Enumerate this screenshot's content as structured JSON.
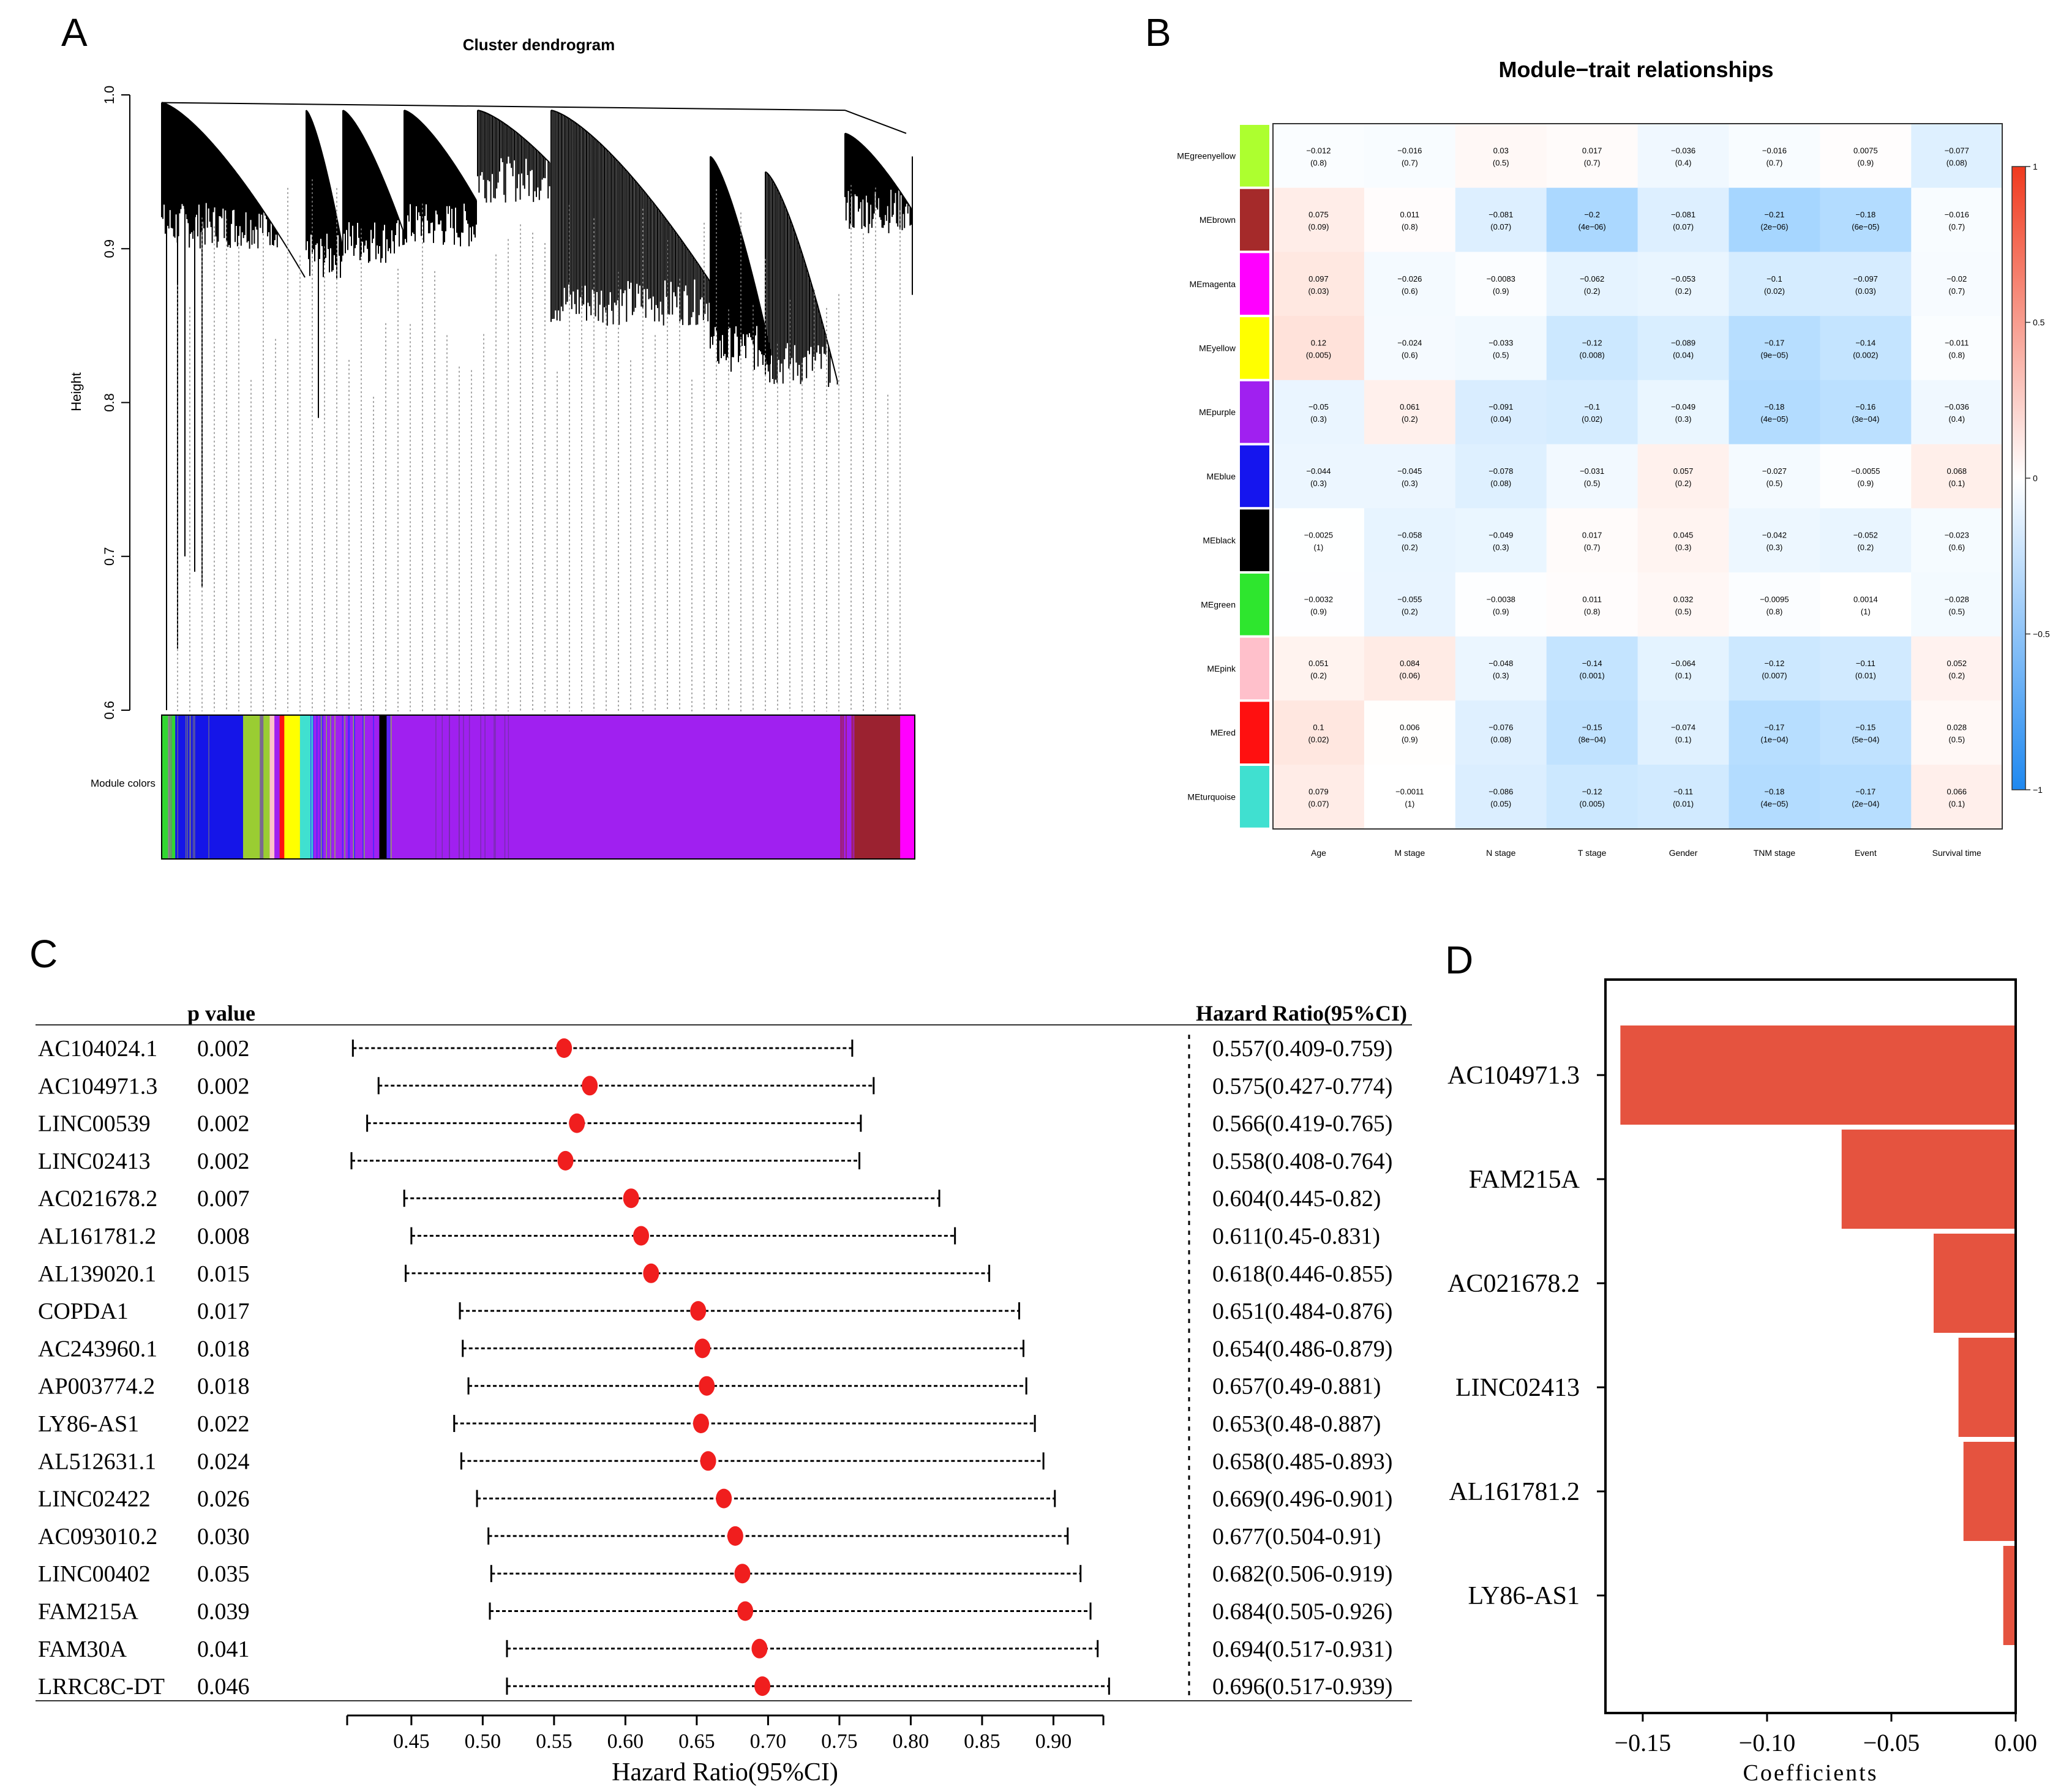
{
  "panels": [
    {
      "letter": "A",
      "chart_data": {
        "type": "dendrogram",
        "title": "Cluster dendrogram",
        "ylabel": "Height",
        "ylim": [
          0.6,
          1.0
        ],
        "y_ticks": [
          "0.6",
          "0.7",
          "0.8",
          "0.9",
          "1.0"
        ],
        "color_bar_label": "Module colors",
        "module_color_bands": [
          {
            "color": "#32d632",
            "weight": 0.6
          },
          {
            "color": "#8a8a8a",
            "weight": 0.25
          },
          {
            "color": "#32d632",
            "weight": 0.45
          },
          {
            "color": "#1515e8",
            "weight": 6.5
          },
          {
            "color": "#9acd32",
            "weight": 1.6
          },
          {
            "color": "#7a6a8e",
            "weight": 0.35
          },
          {
            "color": "#9acd32",
            "weight": 0.6
          },
          {
            "color": "#ffc0cb",
            "weight": 0.45
          },
          {
            "color": "#a020f0",
            "weight": 0.5
          },
          {
            "color": "#ff1010",
            "weight": 0.45
          },
          {
            "color": "#ffff00",
            "weight": 1.5
          },
          {
            "color": "#40e0d0",
            "weight": 1.3
          },
          {
            "color": "#a020f0",
            "weight": 6.3
          },
          {
            "color": "#000000",
            "weight": 0.7
          },
          {
            "color": "#a020f0",
            "weight": 44.8
          },
          {
            "color": "#9b2230",
            "weight": 4.4
          },
          {
            "color": "#ff00ff",
            "weight": 1.4
          }
        ]
      }
    },
    {
      "letter": "B",
      "chart_data": {
        "type": "heatmap",
        "title": "Module−trait relationships",
        "rows": [
          "MEgreenyellow",
          "MEbrown",
          "MEmagenta",
          "MEyellow",
          "MEpurple",
          "MEblue",
          "MEblack",
          "MEgreen",
          "MEpink",
          "MEred",
          "MEturquoise"
        ],
        "row_colors": [
          "#adff2f",
          "#a52a2a",
          "#ff00ff",
          "#ffff00",
          "#a020f0",
          "#1515ee",
          "#000000",
          "#2ee62e",
          "#ffc0cb",
          "#ff1010",
          "#40e0d0"
        ],
        "columns": [
          "Age",
          "M stage",
          "N stage",
          "T stage",
          "Gender",
          "TNM stage",
          "Event",
          "Survival time"
        ],
        "correlations": [
          [
            -0.012,
            -0.016,
            0.03,
            0.017,
            -0.036,
            -0.016,
            0.0075,
            -0.077
          ],
          [
            0.075,
            0.011,
            -0.081,
            -0.2,
            -0.081,
            -0.21,
            -0.18,
            -0.016
          ],
          [
            0.097,
            -0.026,
            -0.0083,
            -0.062,
            -0.053,
            -0.1,
            -0.097,
            -0.02
          ],
          [
            0.12,
            -0.024,
            -0.033,
            -0.12,
            -0.089,
            -0.17,
            -0.14,
            -0.011
          ],
          [
            -0.05,
            0.061,
            -0.091,
            -0.1,
            -0.049,
            -0.18,
            -0.16,
            -0.036
          ],
          [
            -0.044,
            -0.045,
            -0.078,
            -0.031,
            0.057,
            -0.027,
            -0.0055,
            0.068
          ],
          [
            -0.0025,
            -0.058,
            -0.049,
            0.017,
            0.045,
            -0.042,
            -0.052,
            -0.023
          ],
          [
            -0.0032,
            -0.055,
            -0.0038,
            0.011,
            0.032,
            -0.0095,
            0.0014,
            -0.028
          ],
          [
            0.051,
            0.084,
            -0.048,
            -0.14,
            -0.064,
            -0.12,
            -0.11,
            0.052
          ],
          [
            0.1,
            0.006,
            -0.076,
            -0.15,
            -0.074,
            -0.17,
            -0.15,
            0.028
          ],
          [
            0.079,
            -0.0011,
            -0.086,
            -0.12,
            -0.11,
            -0.18,
            -0.17,
            0.066
          ]
        ],
        "cell_labels": [
          [
            [
              "−0.012",
              "(0.8)"
            ],
            [
              "−0.016",
              "(0.7)"
            ],
            [
              "0.03",
              "(0.5)"
            ],
            [
              "0.017",
              "(0.7)"
            ],
            [
              "−0.036",
              "(0.4)"
            ],
            [
              "−0.016",
              "(0.7)"
            ],
            [
              "0.0075",
              "(0.9)"
            ],
            [
              "−0.077",
              "(0.08)"
            ]
          ],
          [
            [
              "0.075",
              "(0.09)"
            ],
            [
              "0.011",
              "(0.8)"
            ],
            [
              "−0.081",
              "(0.07)"
            ],
            [
              "−0.2",
              "(4e−06)"
            ],
            [
              "−0.081",
              "(0.07)"
            ],
            [
              "−0.21",
              "(2e−06)"
            ],
            [
              "−0.18",
              "(6e−05)"
            ],
            [
              "−0.016",
              "(0.7)"
            ]
          ],
          [
            [
              "0.097",
              "(0.03)"
            ],
            [
              "−0.026",
              "(0.6)"
            ],
            [
              "−0.0083",
              "(0.9)"
            ],
            [
              "−0.062",
              "(0.2)"
            ],
            [
              "−0.053",
              "(0.2)"
            ],
            [
              "−0.1",
              "(0.02)"
            ],
            [
              "−0.097",
              "(0.03)"
            ],
            [
              "−0.02",
              "(0.7)"
            ]
          ],
          [
            [
              "0.12",
              "(0.005)"
            ],
            [
              "−0.024",
              "(0.6)"
            ],
            [
              "−0.033",
              "(0.5)"
            ],
            [
              "−0.12",
              "(0.008)"
            ],
            [
              "−0.089",
              "(0.04)"
            ],
            [
              "−0.17",
              "(9e−05)"
            ],
            [
              "−0.14",
              "(0.002)"
            ],
            [
              "−0.011",
              "(0.8)"
            ]
          ],
          [
            [
              "−0.05",
              "(0.3)"
            ],
            [
              "0.061",
              "(0.2)"
            ],
            [
              "−0.091",
              "(0.04)"
            ],
            [
              "−0.1",
              "(0.02)"
            ],
            [
              "−0.049",
              "(0.3)"
            ],
            [
              "−0.18",
              "(4e−05)"
            ],
            [
              "−0.16",
              "(3e−04)"
            ],
            [
              "−0.036",
              "(0.4)"
            ]
          ],
          [
            [
              "−0.044",
              "(0.3)"
            ],
            [
              "−0.045",
              "(0.3)"
            ],
            [
              "−0.078",
              "(0.08)"
            ],
            [
              "−0.031",
              "(0.5)"
            ],
            [
              "0.057",
              "(0.2)"
            ],
            [
              "−0.027",
              "(0.5)"
            ],
            [
              "−0.0055",
              "(0.9)"
            ],
            [
              "0.068",
              "(0.1)"
            ]
          ],
          [
            [
              "−0.0025",
              "(1)"
            ],
            [
              "−0.058",
              "(0.2)"
            ],
            [
              "−0.049",
              "(0.3)"
            ],
            [
              "0.017",
              "(0.7)"
            ],
            [
              "0.045",
              "(0.3)"
            ],
            [
              "−0.042",
              "(0.3)"
            ],
            [
              "−0.052",
              "(0.2)"
            ],
            [
              "−0.023",
              "(0.6)"
            ]
          ],
          [
            [
              "−0.0032",
              "(0.9)"
            ],
            [
              "−0.055",
              "(0.2)"
            ],
            [
              "−0.0038",
              "(0.9)"
            ],
            [
              "0.011",
              "(0.8)"
            ],
            [
              "0.032",
              "(0.5)"
            ],
            [
              "−0.0095",
              "(0.8)"
            ],
            [
              "0.0014",
              "(1)"
            ],
            [
              "−0.028",
              "(0.5)"
            ]
          ],
          [
            [
              "0.051",
              "(0.2)"
            ],
            [
              "0.084",
              "(0.06)"
            ],
            [
              "−0.048",
              "(0.3)"
            ],
            [
              "−0.14",
              "(0.001)"
            ],
            [
              "−0.064",
              "(0.1)"
            ],
            [
              "−0.12",
              "(0.007)"
            ],
            [
              "−0.11",
              "(0.01)"
            ],
            [
              "0.052",
              "(0.2)"
            ]
          ],
          [
            [
              "0.1",
              "(0.02)"
            ],
            [
              "0.006",
              "(0.9)"
            ],
            [
              "−0.076",
              "(0.08)"
            ],
            [
              "−0.15",
              "(8e−04)"
            ],
            [
              "−0.074",
              "(0.1)"
            ],
            [
              "−0.17",
              "(1e−04)"
            ],
            [
              "−0.15",
              "(5e−04)"
            ],
            [
              "0.028",
              "(0.5)"
            ]
          ],
          [
            [
              "0.079",
              "(0.07)"
            ],
            [
              "−0.0011",
              "(1)"
            ],
            [
              "−0.086",
              "(0.05)"
            ],
            [
              "−0.12",
              "(0.005)"
            ],
            [
              "−0.11",
              "(0.01)"
            ],
            [
              "−0.18",
              "(4e−05)"
            ],
            [
              "−0.17",
              "(2e−04)"
            ],
            [
              "0.066",
              "(0.1)"
            ]
          ]
        ],
        "colorbar_range": [
          -1,
          1
        ],
        "colorbar_ticks": [
          "1",
          "0.5",
          "0",
          "−0.5",
          "−1"
        ]
      }
    },
    {
      "letter": "C",
      "chart_data": {
        "type": "forest",
        "pvalue_header": "p value",
        "hr_header": "Hazard Ratio(95%CI)",
        "xlabel": "Hazard Ratio(95%CI)",
        "x_ticks": [
          "0.45",
          "0.50",
          "0.55",
          "0.60",
          "0.65",
          "0.70",
          "0.75",
          "0.80",
          "0.85",
          "0.90"
        ],
        "xlim": [
          0.405,
          0.935
        ],
        "rows": [
          {
            "gene": "AC104024.1",
            "p": "0.002",
            "hr": 0.557,
            "lo": 0.409,
            "hi": 0.759,
            "label": "0.557(0.409-0.759)"
          },
          {
            "gene": "AC104971.3",
            "p": "0.002",
            "hr": 0.575,
            "lo": 0.427,
            "hi": 0.774,
            "label": "0.575(0.427-0.774)"
          },
          {
            "gene": "LINC00539",
            "p": "0.002",
            "hr": 0.566,
            "lo": 0.419,
            "hi": 0.765,
            "label": "0.566(0.419-0.765)"
          },
          {
            "gene": "LINC02413",
            "p": "0.002",
            "hr": 0.558,
            "lo": 0.408,
            "hi": 0.764,
            "label": "0.558(0.408-0.764)"
          },
          {
            "gene": "AC021678.2",
            "p": "0.007",
            "hr": 0.604,
            "lo": 0.445,
            "hi": 0.82,
            "label": "0.604(0.445-0.82)"
          },
          {
            "gene": "AL161781.2",
            "p": "0.008",
            "hr": 0.611,
            "lo": 0.45,
            "hi": 0.831,
            "label": "0.611(0.45-0.831)"
          },
          {
            "gene": "AL139020.1",
            "p": "0.015",
            "hr": 0.618,
            "lo": 0.446,
            "hi": 0.855,
            "label": "0.618(0.446-0.855)"
          },
          {
            "gene": "COPDA1",
            "p": "0.017",
            "hr": 0.651,
            "lo": 0.484,
            "hi": 0.876,
            "label": "0.651(0.484-0.876)"
          },
          {
            "gene": "AC243960.1",
            "p": "0.018",
            "hr": 0.654,
            "lo": 0.486,
            "hi": 0.879,
            "label": "0.654(0.486-0.879)"
          },
          {
            "gene": "AP003774.2",
            "p": "0.018",
            "hr": 0.657,
            "lo": 0.49,
            "hi": 0.881,
            "label": "0.657(0.49-0.881)"
          },
          {
            "gene": "LY86-AS1",
            "p": "0.022",
            "hr": 0.653,
            "lo": 0.48,
            "hi": 0.887,
            "label": "0.653(0.48-0.887)"
          },
          {
            "gene": "AL512631.1",
            "p": "0.024",
            "hr": 0.658,
            "lo": 0.485,
            "hi": 0.893,
            "label": "0.658(0.485-0.893)"
          },
          {
            "gene": "LINC02422",
            "p": "0.026",
            "hr": 0.669,
            "lo": 0.496,
            "hi": 0.901,
            "label": "0.669(0.496-0.901)"
          },
          {
            "gene": "AC093010.2",
            "p": "0.030",
            "hr": 0.677,
            "lo": 0.504,
            "hi": 0.91,
            "label": "0.677(0.504-0.91)"
          },
          {
            "gene": "LINC00402",
            "p": "0.035",
            "hr": 0.682,
            "lo": 0.506,
            "hi": 0.919,
            "label": "0.682(0.506-0.919)"
          },
          {
            "gene": "FAM215A",
            "p": "0.039",
            "hr": 0.684,
            "lo": 0.505,
            "hi": 0.926,
            "label": "0.684(0.505-0.926)"
          },
          {
            "gene": "FAM30A",
            "p": "0.041",
            "hr": 0.694,
            "lo": 0.517,
            "hi": 0.931,
            "label": "0.694(0.517-0.931)"
          },
          {
            "gene": "LRRC8C-DT",
            "p": "0.046",
            "hr": 0.696,
            "lo": 0.517,
            "hi": 0.939,
            "label": "0.696(0.517-0.939)"
          }
        ]
      }
    },
    {
      "letter": "D",
      "chart_data": {
        "type": "bar",
        "orientation": "horizontal",
        "categories": [
          "AC104971.3",
          "FAM215A",
          "AC021678.2",
          "LINC02413",
          "AL161781.2",
          "LY86-AS1"
        ],
        "values": [
          -0.159,
          -0.07,
          -0.033,
          -0.023,
          -0.021,
          -0.005
        ],
        "xlabel": "Coefficients",
        "x_ticks": [
          "−0.15",
          "−0.10",
          "−0.05",
          "0.00"
        ],
        "xlim": [
          -0.165,
          0.0
        ],
        "bar_color": "#e5533f"
      }
    }
  ]
}
